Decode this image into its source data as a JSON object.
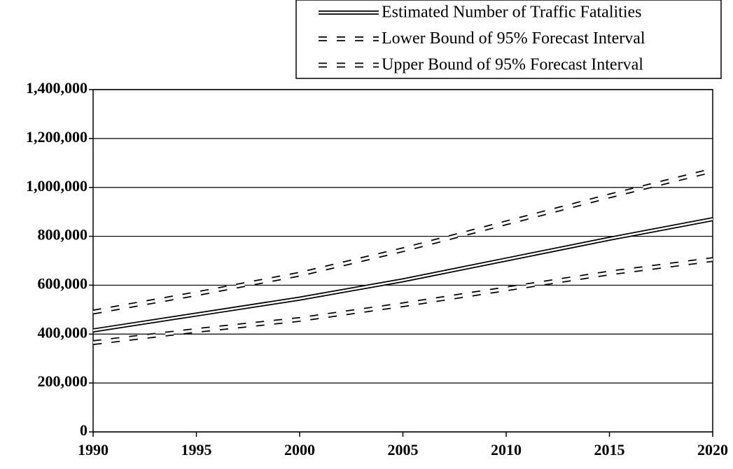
{
  "chart_data": {
    "type": "line",
    "x": [
      1990,
      1995,
      2000,
      2005,
      2010,
      2015,
      2020
    ],
    "series": [
      {
        "name": "Estimated Number of Traffic Fatalities",
        "color": "#000000",
        "style": "double",
        "values": [
          415000,
          480000,
          545000,
          620000,
          705000,
          790000,
          870000
        ]
      },
      {
        "name": "Lower Bound of 95% Forecast Interval",
        "color": "#000000",
        "style": "dashed",
        "values": [
          365000,
          415000,
          460000,
          520000,
          585000,
          650000,
          705000
        ]
      },
      {
        "name": "Upper Bound of 95% Forecast Interval",
        "color": "#000000",
        "style": "dashed",
        "values": [
          490000,
          565000,
          645000,
          745000,
          855000,
          965000,
          1070000
        ]
      }
    ],
    "xlim": [
      1990,
      2020
    ],
    "xticks": [
      1990,
      1995,
      2000,
      2005,
      2010,
      2015,
      2020
    ],
    "ylim": [
      0,
      1400000
    ],
    "yticks": [
      0,
      {
        "value": 200000,
        "label": "200,000"
      },
      {
        "value": 400000,
        "label": "400,000"
      },
      {
        "value": 600000,
        "label": "600,000"
      },
      {
        "value": 800000,
        "label": "800,000"
      },
      {
        "value": 1000000,
        "label": "1,000,000"
      },
      {
        "value": 1200000,
        "label": "1,200,000"
      },
      {
        "value": 1400000,
        "label": "1,400,000"
      }
    ],
    "grid": true,
    "legend": "top-right"
  }
}
